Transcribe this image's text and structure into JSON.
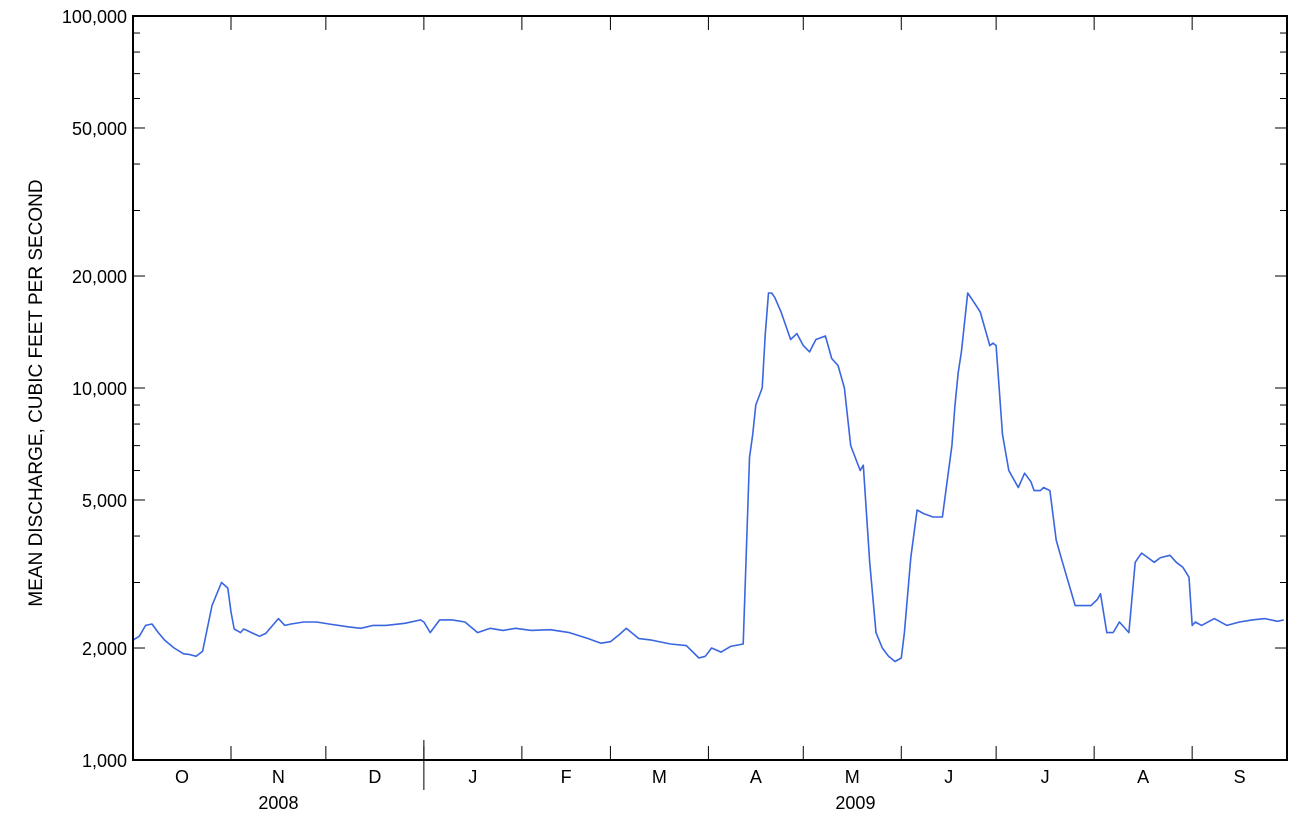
{
  "chart_data": {
    "type": "line",
    "title": "",
    "ylabel": "MEAN DISCHARGE, CUBIC FEET PER SECOND",
    "xlabel": "",
    "y_scale": "log",
    "ylim": [
      1000,
      100000
    ],
    "y_ticks": [
      {
        "value": 1000,
        "label": "1,000"
      },
      {
        "value": 2000,
        "label": "2,000"
      },
      {
        "value": 5000,
        "label": "5,000"
      },
      {
        "value": 10000,
        "label": "10,000"
      },
      {
        "value": 20000,
        "label": "20,000"
      },
      {
        "value": 50000,
        "label": "50,000"
      },
      {
        "value": 100000,
        "label": "100,000"
      }
    ],
    "xlim": [
      "2008-10-01",
      "2009-09-30"
    ],
    "month_labels": [
      "O",
      "N",
      "D",
      "J",
      "F",
      "M",
      "A",
      "M",
      "J",
      "J",
      "A",
      "S"
    ],
    "year_labels": [
      {
        "label": "2008",
        "months": [
          "O",
          "N",
          "D"
        ]
      },
      {
        "label": "2009",
        "months": [
          "J",
          "F",
          "M",
          "A",
          "M",
          "J",
          "J",
          "A",
          "S"
        ]
      }
    ],
    "grid": false,
    "line_color": "#3a66e0",
    "series": [
      {
        "x": [
          "2008-10-01",
          "2008-10-03",
          "2008-10-05",
          "2008-10-07",
          "2008-10-09",
          "2008-10-11",
          "2008-10-14",
          "2008-10-17",
          "2008-10-19",
          "2008-10-21",
          "2008-10-23",
          "2008-10-26",
          "2008-10-29",
          "2008-10-31",
          "2008-11-01",
          "2008-11-02",
          "2008-11-04",
          "2008-11-05",
          "2008-11-06",
          "2008-11-08",
          "2008-11-10",
          "2008-11-12",
          "2008-11-16",
          "2008-11-18",
          "2008-11-20",
          "2008-11-24",
          "2008-11-28",
          "2008-12-02",
          "2008-12-08",
          "2008-12-12",
          "2008-12-16",
          "2008-12-20",
          "2008-12-26",
          "2008-12-31",
          "2009-01-01",
          "2009-01-03",
          "2009-01-06",
          "2009-01-10",
          "2009-01-14",
          "2009-01-18",
          "2009-01-22",
          "2009-01-26",
          "2009-01-30",
          "2009-02-04",
          "2009-02-10",
          "2009-02-16",
          "2009-02-22",
          "2009-02-26",
          "2009-03-01",
          "2009-03-04",
          "2009-03-06",
          "2009-03-10",
          "2009-03-14",
          "2009-03-20",
          "2009-03-25",
          "2009-03-29",
          "2009-03-31",
          "2009-04-02",
          "2009-04-05",
          "2009-04-08",
          "2009-04-12",
          "2009-04-14",
          "2009-04-15",
          "2009-04-16",
          "2009-04-18",
          "2009-04-19",
          "2009-04-20",
          "2009-04-21",
          "2009-04-22",
          "2009-04-24",
          "2009-04-27",
          "2009-04-29",
          "2009-05-01",
          "2009-05-03",
          "2009-05-05",
          "2009-05-08",
          "2009-05-10",
          "2009-05-12",
          "2009-05-14",
          "2009-05-16",
          "2009-05-19",
          "2009-05-20",
          "2009-05-22",
          "2009-05-24",
          "2009-05-26",
          "2009-05-28",
          "2009-05-30",
          "2009-06-01",
          "2009-06-02",
          "2009-06-04",
          "2009-06-06",
          "2009-06-08",
          "2009-06-11",
          "2009-06-14",
          "2009-06-17",
          "2009-06-18",
          "2009-06-19",
          "2009-06-20",
          "2009-06-22",
          "2009-06-24",
          "2009-06-26",
          "2009-06-29",
          "2009-06-30",
          "2009-07-01",
          "2009-07-03",
          "2009-07-05",
          "2009-07-08",
          "2009-07-10",
          "2009-07-12",
          "2009-07-13",
          "2009-07-15",
          "2009-07-16",
          "2009-07-18",
          "2009-07-20",
          "2009-07-22",
          "2009-07-26",
          "2009-07-29",
          "2009-07-31",
          "2009-08-02",
          "2009-08-03",
          "2009-08-05",
          "2009-08-07",
          "2009-08-09",
          "2009-08-12",
          "2009-08-14",
          "2009-08-15",
          "2009-08-16",
          "2009-08-18",
          "2009-08-20",
          "2009-08-22",
          "2009-08-25",
          "2009-08-27",
          "2009-08-29",
          "2009-08-31",
          "2009-09-01",
          "2009-09-02",
          "2009-09-04",
          "2009-09-08",
          "2009-09-12",
          "2009-09-16",
          "2009-09-20",
          "2009-09-24",
          "2009-09-28",
          "2009-09-30"
        ],
        "y": [
          2100,
          2150,
          2300,
          2320,
          2200,
          2100,
          2000,
          1930,
          1920,
          1900,
          1960,
          2600,
          3000,
          2900,
          2500,
          2250,
          2200,
          2250,
          2230,
          2190,
          2150,
          2190,
          2400,
          2300,
          2320,
          2350,
          2350,
          2320,
          2280,
          2260,
          2300,
          2300,
          2330,
          2380,
          2350,
          2200,
          2380,
          2380,
          2350,
          2200,
          2260,
          2230,
          2260,
          2230,
          2240,
          2200,
          2120,
          2060,
          2080,
          2180,
          2260,
          2120,
          2100,
          2050,
          2030,
          1880,
          1900,
          2000,
          1950,
          2020,
          2050,
          6500,
          7500,
          9000,
          10000,
          14000,
          18000,
          18000,
          17500,
          16000,
          13500,
          14000,
          13000,
          12500,
          13500,
          13800,
          12000,
          11500,
          10000,
          7000,
          6000,
          6200,
          3400,
          2200,
          2000,
          1900,
          1840,
          1880,
          2200,
          3500,
          4700,
          4600,
          4500,
          4500,
          7000,
          9000,
          11000,
          12500,
          18000,
          17000,
          16000,
          13000,
          13200,
          13000,
          7500,
          6000,
          5400,
          5900,
          5600,
          5300,
          5300,
          5400,
          5300,
          3900,
          3400,
          2600,
          2600,
          2600,
          2700,
          2800,
          2200,
          2200,
          2350,
          2200,
          3400,
          3500,
          3600,
          3500,
          3400,
          3500,
          3550,
          3400,
          3300,
          3100,
          2300,
          2350,
          2300,
          2400,
          2300,
          2350,
          2380,
          2400,
          2360,
          2380
        ]
      }
    ]
  }
}
